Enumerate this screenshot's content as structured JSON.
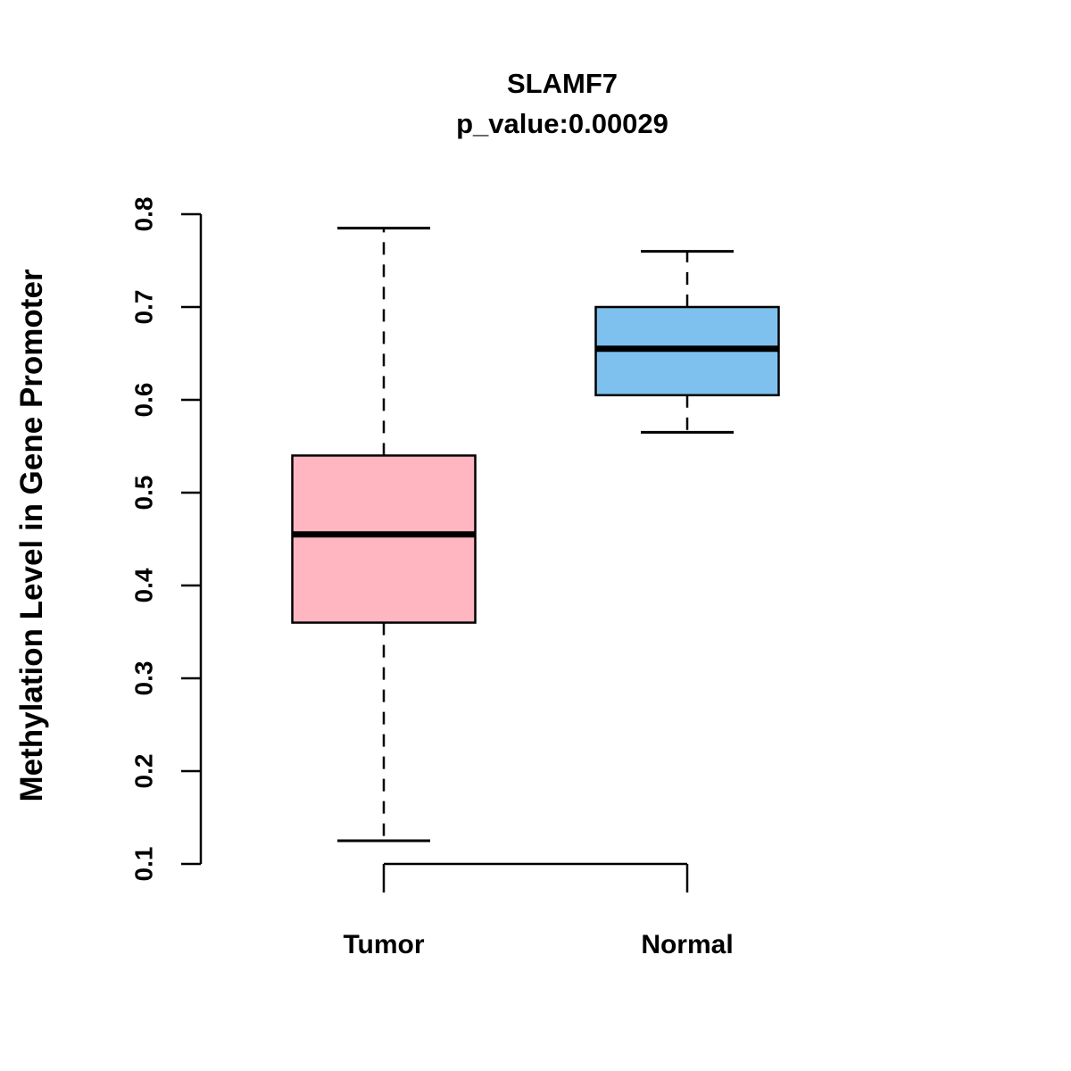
{
  "chart_data": {
    "type": "boxplot",
    "title": "SLAMF7",
    "subtitle": "p_value:0.00029",
    "ylabel": "Methylation Level in Gene Promoter",
    "xlabel": "",
    "ylim": [
      0.1,
      0.8
    ],
    "yticks": [
      0.1,
      0.2,
      0.3,
      0.4,
      0.5,
      0.6,
      0.7,
      0.8
    ],
    "categories": [
      "Tumor",
      "Normal"
    ],
    "series": [
      {
        "name": "Tumor",
        "min": 0.125,
        "q1": 0.36,
        "median": 0.455,
        "q3": 0.54,
        "max": 0.785,
        "color": "#FFB6C1"
      },
      {
        "name": "Normal",
        "min": 0.565,
        "q1": 0.605,
        "median": 0.655,
        "q3": 0.7,
        "max": 0.76,
        "color": "#7EC0EE"
      }
    ],
    "grid": false,
    "legend": "none",
    "axis_color": "#000000",
    "whisker_style": "dashed"
  }
}
